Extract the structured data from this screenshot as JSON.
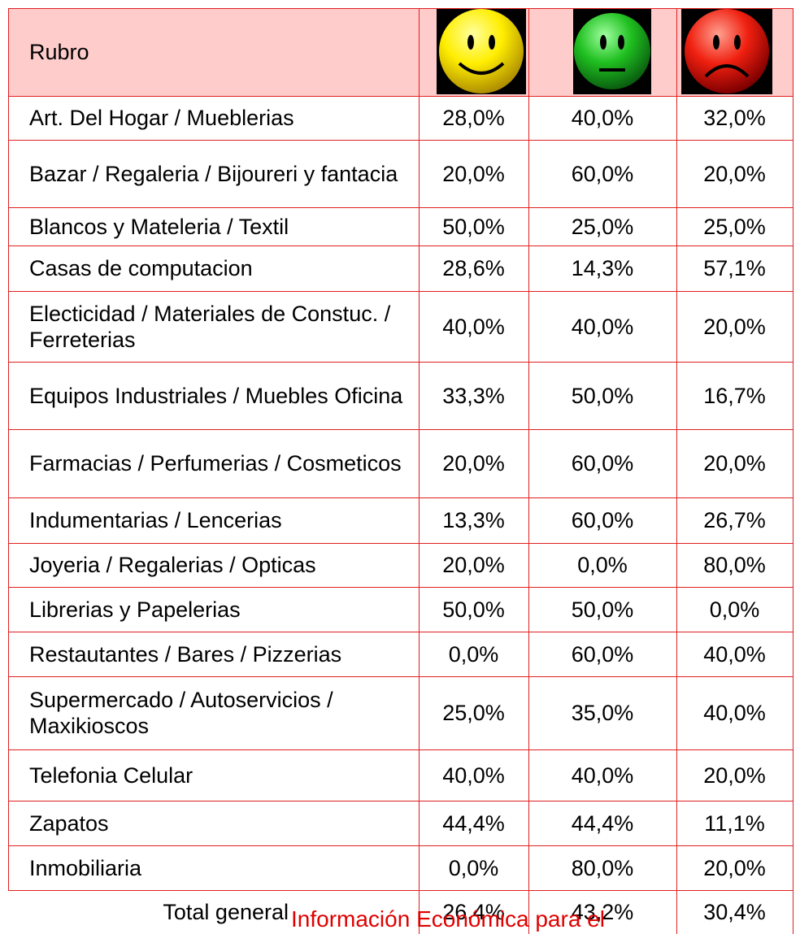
{
  "table": {
    "header": "Rubro",
    "rows": [
      [
        "Art. Del Hogar / Mueblerias",
        "28,0%",
        "40,0%",
        "32,0%"
      ],
      [
        "Bazar / Regaleria / Bijoureri  y fantacia",
        "20,0%",
        "60,0%",
        "20,0%"
      ],
      [
        "Blancos y Mateleria / Textil",
        "50,0%",
        "25,0%",
        "25,0%"
      ],
      [
        "Casas de computacion",
        "28,6%",
        "14,3%",
        "57,1%"
      ],
      [
        "Electicidad  / Materiales de Constuc. / Ferreterias",
        "40,0%",
        "40,0%",
        "20,0%"
      ],
      [
        "Equipos Industriales / Muebles Oficina",
        "33,3%",
        "50,0%",
        "16,7%"
      ],
      [
        "Farmacias / Perfumerias / Cosmeticos",
        "20,0%",
        "60,0%",
        "20,0%"
      ],
      [
        "Indumentarias / Lencerias",
        "13,3%",
        "60,0%",
        "26,7%"
      ],
      [
        "Joyeria / Regalerias / Opticas",
        "20,0%",
        "0,0%",
        "80,0%"
      ],
      [
        "Librerias y Papelerias",
        "50,0%",
        "50,0%",
        "0,0%"
      ],
      [
        "Restautantes / Bares / Pizzerias",
        "0,0%",
        "60,0%",
        "40,0%"
      ],
      [
        "Supermercado / Autoservicios / Maxikioscos",
        "25,0%",
        "35,0%",
        "40,0%"
      ],
      [
        "Telefonia Celular",
        "40,0%",
        "40,0%",
        "20,0%"
      ],
      [
        "Zapatos",
        "44,4%",
        "44,4%",
        "11,1%"
      ],
      [
        "Inmobiliaria",
        "0,0%",
        "80,0%",
        "20,0%"
      ]
    ],
    "total": [
      "Total general",
      "26,4%",
      "43,2%",
      "30,4%"
    ]
  },
  "overlay": "Información Económica para el"
}
